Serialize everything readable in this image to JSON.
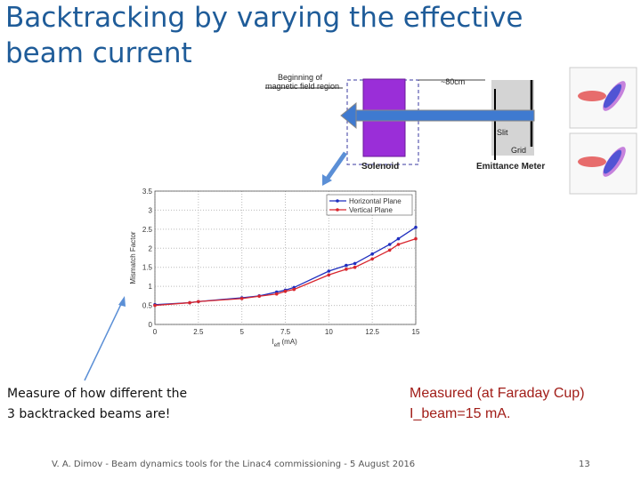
{
  "title": [
    "Backtracking by varying the effective",
    "beam current"
  ],
  "diagram": {
    "field_region": [
      "Beginning of",
      "magnetic field region"
    ],
    "distance": "~80cm",
    "solenoid": "Solenoid",
    "meter": "Emittance Meter",
    "slit": "Slit",
    "grid": "Grid"
  },
  "chart_data": {
    "type": "line",
    "ylabel": "Mismatch Factor",
    "xlabel": [
      "I",
      "eff",
      " (mA)"
    ],
    "x": [
      0,
      2,
      2.5,
      5,
      6,
      7,
      7.5,
      8,
      10,
      11,
      11.5,
      12.5,
      13.5,
      14,
      15
    ],
    "series": [
      {
        "name": "Horizontal Plane",
        "color": "#1f2fbf",
        "values": [
          0.52,
          0.57,
          0.6,
          0.7,
          0.75,
          0.85,
          0.9,
          0.97,
          1.4,
          1.55,
          1.6,
          1.85,
          2.1,
          2.25,
          2.55
        ]
      },
      {
        "name": "Vertical Plane",
        "color": "#d8262e",
        "values": [
          0.5,
          0.57,
          0.6,
          0.68,
          0.74,
          0.8,
          0.87,
          0.92,
          1.3,
          1.45,
          1.5,
          1.72,
          1.95,
          2.1,
          2.25
        ]
      }
    ],
    "xlim": [
      0,
      15
    ],
    "xticks": [
      0,
      2.5,
      5,
      7.5,
      10,
      12.5,
      15
    ],
    "ylim": [
      0,
      3.5
    ],
    "yticks": [
      0,
      0.5,
      1,
      1.5,
      2,
      2.5,
      3,
      3.5
    ],
    "grid": true,
    "legend": "top-right"
  },
  "notes": {
    "left": [
      "Measure of how different the",
      "3 backtracked beams are!"
    ],
    "right": [
      "Measured (at Faraday Cup)",
      "I_beam=15 mA."
    ]
  },
  "footer": {
    "text": "V. A. Dimov - Beam dynamics tools for the Linac4 commissioning - 5 August 2016",
    "page": "13"
  }
}
